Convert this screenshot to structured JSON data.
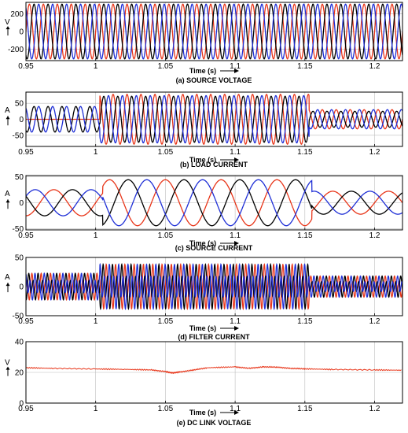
{
  "figure": {
    "panels": [
      {
        "caption": "(a) SOURCE VOLTAGE",
        "unit": "V",
        "time_label": "Time (s)",
        "arrow": "up"
      },
      {
        "caption": "(b) LOAD CURRENT",
        "unit": "A",
        "time_label": "Time (s)",
        "arrow": "down"
      },
      {
        "caption": "(c) SOURCE CURRENT",
        "unit": "A",
        "time_label": "Time (s)",
        "arrow": "down"
      },
      {
        "caption": "(d) FILTER CURRENT",
        "unit": "A",
        "time_label": "Time (s)",
        "arrow": "down"
      },
      {
        "caption": "(e) DC LINK VOLTAGE",
        "unit": "V",
        "time_label": "Time (s)",
        "arrow": "up"
      }
    ]
  },
  "colors": {
    "phase_a": "#e8361a",
    "phase_b": "#000000",
    "phase_c": "#1f2fd6",
    "dc": "#e8361a",
    "grid": "#bdbdbd"
  },
  "chart_data": [
    {
      "type": "line",
      "title": "(a) SOURCE VOLTAGE",
      "xlabel": "Time (s)",
      "ylabel": "V",
      "xlim": [
        0.95,
        1.22
      ],
      "ylim": [
        -330,
        330
      ],
      "xticks": [
        "0.95",
        "1",
        "1.05",
        "1.1",
        "1.15",
        "1.2"
      ],
      "xtick_values": [
        0.95,
        1.0,
        1.05,
        1.1,
        1.15,
        1.2
      ],
      "yticks": [
        "200",
        "0",
        "-200"
      ],
      "ytick_values": [
        200,
        0,
        -200
      ],
      "grid": true,
      "frequency_hz": 100,
      "series": [
        {
          "color_key": "phase_a",
          "phase_deg": 0,
          "segments": [
            {
              "t0": 0.95,
              "t1": 1.22,
              "amplitude": 310
            }
          ]
        },
        {
          "color_key": "phase_b",
          "phase_deg": -120,
          "segments": [
            {
              "t0": 0.95,
              "t1": 1.22,
              "amplitude": 310
            }
          ]
        },
        {
          "color_key": "phase_c",
          "phase_deg": 120,
          "segments": [
            {
              "t0": 0.95,
              "t1": 1.22,
              "amplitude": 310
            }
          ]
        }
      ]
    },
    {
      "type": "line",
      "title": "(b) LOAD CURRENT",
      "xlabel": "Time (s)",
      "ylabel": "A",
      "xlim": [
        0.95,
        1.22
      ],
      "ylim": [
        -85,
        85
      ],
      "xticks": [
        "0.95",
        "1",
        "1.05",
        "1.1",
        "1.15",
        "1.2"
      ],
      "xtick_values": [
        0.95,
        1.0,
        1.05,
        1.1,
        1.15,
        1.2
      ],
      "yticks": [
        "50",
        "0",
        "-50"
      ],
      "ytick_values": [
        50,
        0,
        -50
      ],
      "grid": true,
      "frequency_hz": 100,
      "series": [
        {
          "color_key": "phase_a",
          "phase_deg": 0,
          "segments": [
            {
              "t0": 0.95,
              "t1": 1.003,
              "amplitude": 0
            },
            {
              "t0": 1.003,
              "t1": 1.153,
              "amplitude": 78
            },
            {
              "t0": 1.153,
              "t1": 1.22,
              "amplitude": 30
            }
          ]
        },
        {
          "color_key": "phase_b",
          "phase_deg": -120,
          "segments": [
            {
              "t0": 0.95,
              "t1": 1.003,
              "amplitude": 40
            },
            {
              "t0": 1.003,
              "t1": 1.153,
              "amplitude": 72
            },
            {
              "t0": 1.153,
              "t1": 1.22,
              "amplitude": 25
            }
          ]
        },
        {
          "color_key": "phase_c",
          "phase_deg": 120,
          "segments": [
            {
              "t0": 0.95,
              "t1": 1.003,
              "amplitude": 40
            },
            {
              "t0": 1.003,
              "t1": 1.153,
              "amplitude": 74
            },
            {
              "t0": 1.153,
              "t1": 1.22,
              "amplitude": 30
            }
          ]
        }
      ]
    },
    {
      "type": "line",
      "title": "(c) SOURCE CURRENT",
      "xlabel": "Time (s)",
      "ylabel": "A",
      "xlim": [
        0.95,
        1.22
      ],
      "ylim": [
        -52,
        52
      ],
      "xticks": [
        "0.95",
        "1",
        "1.05",
        "1.1",
        "1.15",
        "1.2"
      ],
      "xtick_values": [
        0.95,
        1.0,
        1.05,
        1.1,
        1.15,
        1.2
      ],
      "yticks": [
        "50",
        "0",
        "-50"
      ],
      "ytick_values": [
        50,
        0,
        -50
      ],
      "grid": true,
      "frequency_hz": 25,
      "series": [
        {
          "color_key": "phase_a",
          "phase_deg": 0,
          "segments": [
            {
              "t0": 0.95,
              "t1": 1.005,
              "amplitude": 25
            },
            {
              "t0": 1.005,
              "t1": 1.155,
              "amplitude": 44
            },
            {
              "t0": 1.155,
              "t1": 1.22,
              "amplitude": 22
            }
          ]
        },
        {
          "color_key": "phase_b",
          "phase_deg": -120,
          "segments": [
            {
              "t0": 0.95,
              "t1": 1.005,
              "amplitude": 25
            },
            {
              "t0": 1.005,
              "t1": 1.155,
              "amplitude": 44
            },
            {
              "t0": 1.155,
              "t1": 1.22,
              "amplitude": 22
            }
          ]
        },
        {
          "color_key": "phase_c",
          "phase_deg": 120,
          "segments": [
            {
              "t0": 0.95,
              "t1": 1.005,
              "amplitude": 25
            },
            {
              "t0": 1.005,
              "t1": 1.155,
              "amplitude": 44
            },
            {
              "t0": 1.155,
              "t1": 1.22,
              "amplitude": 22
            }
          ]
        }
      ]
    },
    {
      "type": "line",
      "title": "(d) FILTER CURRENT",
      "xlabel": "Time (s)",
      "ylabel": "A",
      "xlim": [
        0.95,
        1.22
      ],
      "ylim": [
        -50,
        50
      ],
      "xticks": [
        "0.95",
        "1",
        "1.05",
        "1.1",
        "1.15",
        "1.2"
      ],
      "xtick_values": [
        0.95,
        1.0,
        1.05,
        1.1,
        1.15,
        1.2
      ],
      "yticks": [
        "50",
        "0",
        "-50"
      ],
      "ytick_values": [
        50,
        0,
        -50
      ],
      "grid": true,
      "frequency_hz": 300,
      "series": [
        {
          "color_key": "phase_a",
          "phase_deg": 0,
          "segments": [
            {
              "t0": 0.95,
              "t1": 1.003,
              "amplitude": 25
            },
            {
              "t0": 1.003,
              "t1": 1.153,
              "amplitude": 42
            },
            {
              "t0": 1.153,
              "t1": 1.22,
              "amplitude": 20
            }
          ]
        },
        {
          "color_key": "phase_b",
          "phase_deg": -120,
          "segments": [
            {
              "t0": 0.95,
              "t1": 1.003,
              "amplitude": 25
            },
            {
              "t0": 1.003,
              "t1": 1.153,
              "amplitude": 42
            },
            {
              "t0": 1.153,
              "t1": 1.22,
              "amplitude": 20
            }
          ]
        },
        {
          "color_key": "phase_c",
          "phase_deg": 120,
          "segments": [
            {
              "t0": 0.95,
              "t1": 1.003,
              "amplitude": 25
            },
            {
              "t0": 1.003,
              "t1": 1.153,
              "amplitude": 42
            },
            {
              "t0": 1.153,
              "t1": 1.22,
              "amplitude": 20
            }
          ]
        }
      ]
    },
    {
      "type": "line",
      "title": "(e) DC LINK VOLTAGE",
      "xlabel": "Time (s)",
      "ylabel": "V",
      "xlim": [
        0.95,
        1.22
      ],
      "ylim": [
        0,
        40
      ],
      "xticks": [
        "0.95",
        "1",
        "1.05",
        "1.1",
        "1.15",
        "1.2"
      ],
      "xtick_values": [
        0.95,
        1.0,
        1.05,
        1.1,
        1.15,
        1.2
      ],
      "yticks": [
        "40",
        "20",
        "0"
      ],
      "ytick_values": [
        40,
        20,
        0
      ],
      "grid": true,
      "series": [
        {
          "color_key": "dc",
          "points": [
            [
              0.95,
              23
            ],
            [
              0.97,
              22.6
            ],
            [
              1.0,
              22.2
            ],
            [
              1.02,
              22.0
            ],
            [
              1.04,
              21.6
            ],
            [
              1.05,
              20.5
            ],
            [
              1.055,
              19.6
            ],
            [
              1.06,
              20.2
            ],
            [
              1.07,
              21.5
            ],
            [
              1.08,
              23.0
            ],
            [
              1.1,
              23.6
            ],
            [
              1.11,
              22.6
            ],
            [
              1.12,
              23.6
            ],
            [
              1.13,
              23.4
            ],
            [
              1.14,
              22.6
            ],
            [
              1.15,
              22.3
            ],
            [
              1.17,
              21.9
            ],
            [
              1.2,
              21.6
            ],
            [
              1.22,
              21.4
            ]
          ]
        }
      ]
    }
  ]
}
